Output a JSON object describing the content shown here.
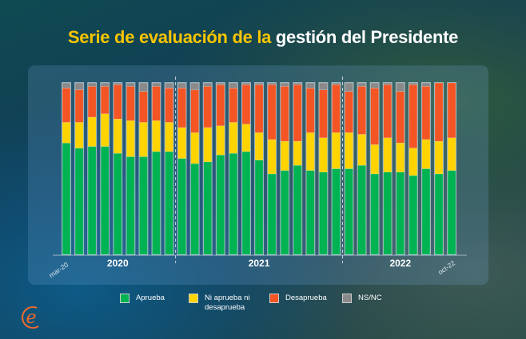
{
  "title": {
    "part1": "Serie de evaluación de la",
    "part2": "gestión del Presidente"
  },
  "colors": {
    "aprueba": "#00b352",
    "ni": "#ffd400",
    "desaprueba": "#f45524",
    "nsnc": "#8a8a8a",
    "title_accent": "#f7c500"
  },
  "chart_data": {
    "type": "bar",
    "stacked": true,
    "orientation": "vertical",
    "unit": "%",
    "ylim": [
      0,
      100
    ],
    "grid": false,
    "legend": "bottom",
    "xlabels": {
      "first": "mar-20",
      "last": "oct-22"
    },
    "groups": [
      "2020",
      "2021",
      "2022"
    ],
    "group_counts": [
      9,
      13,
      9
    ],
    "series": [
      {
        "name": "Aprueba",
        "key": "aprueba",
        "values": [
          65,
          62,
          63,
          63,
          59,
          57,
          57,
          60,
          60,
          56,
          53,
          54,
          58,
          59,
          60,
          55,
          47,
          49,
          52,
          49,
          48,
          50,
          50,
          52,
          47,
          48,
          48,
          46,
          50,
          47,
          49
        ]
      },
      {
        "name": "Ni aprueba ni desaprueba",
        "key": "ni",
        "values": [
          12,
          15,
          17,
          19,
          20,
          21,
          20,
          18,
          17,
          18,
          18,
          20,
          17,
          18,
          16,
          16,
          20,
          17,
          14,
          22,
          20,
          21,
          21,
          18,
          17,
          20,
          17,
          16,
          17,
          19,
          19
        ]
      },
      {
        "name": "Desaprueba",
        "key": "desaprueba",
        "values": [
          20,
          19,
          18,
          16,
          20,
          20,
          18,
          20,
          20,
          23,
          25,
          24,
          24,
          20,
          23,
          28,
          32,
          32,
          33,
          26,
          28,
          28,
          24,
          28,
          33,
          31,
          30,
          37,
          31,
          34,
          32
        ]
      },
      {
        "name": "NS/NC",
        "key": "nsnc",
        "values": [
          3,
          4,
          2,
          2,
          1,
          2,
          5,
          2,
          3,
          3,
          4,
          2,
          1,
          3,
          1,
          1,
          1,
          2,
          1,
          3,
          4,
          1,
          5,
          2,
          3,
          1,
          5,
          1,
          2,
          0,
          0
        ]
      }
    ]
  },
  "legend": [
    {
      "label": "Aprueba",
      "key": "aprueba"
    },
    {
      "label": "Ni aprueba ni desaprueba",
      "key": "ni"
    },
    {
      "label": "Desaprueba",
      "key": "desaprueba"
    },
    {
      "label": "NS/NC",
      "key": "nsnc"
    }
  ],
  "logo": {
    "text": "e"
  }
}
